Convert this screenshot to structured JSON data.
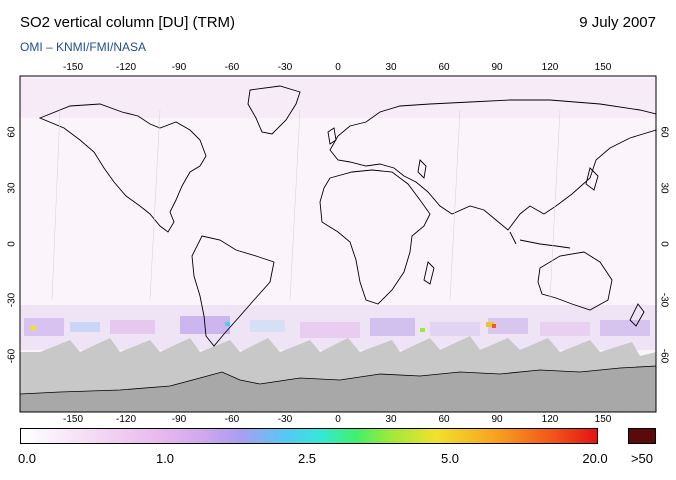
{
  "header": {
    "title": "SO2 vertical column [DU] (TRM)",
    "date": "9 July 2007",
    "credit": "OMI  –  KNMI/FMI/NASA"
  },
  "map": {
    "lon_ticks": [
      "-150",
      "-120",
      "-90",
      "-60",
      "-30",
      "0",
      "30",
      "60",
      "90",
      "120",
      "150"
    ],
    "lat_ticks": [
      "60",
      "30",
      "0",
      "-30",
      "-60"
    ],
    "colors": {
      "land_outline": "#000000",
      "no_data": "#c8c8c8",
      "antarctica": "#a8a8a8",
      "plot_bg": "#fbf5fb"
    }
  },
  "legend": {
    "labels": [
      "0.0",
      "1.0",
      "2.5",
      "5.0",
      "20.0"
    ],
    "over_label": ">50",
    "over_color": "#5a0a0a"
  }
}
